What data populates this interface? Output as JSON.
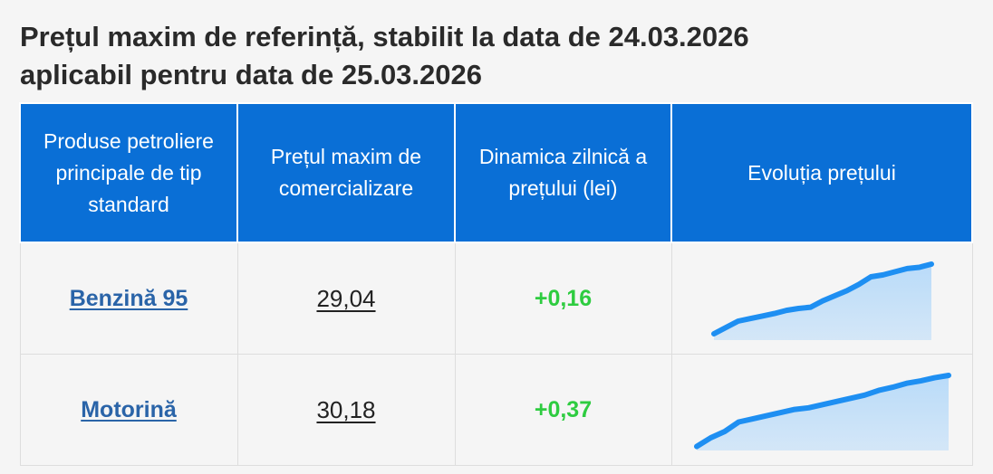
{
  "title": {
    "line1": "Prețul maxim de referință, stabilit la data de 24.03.2026",
    "line2": "aplicabil pentru data de 25.03.2026"
  },
  "table": {
    "headers": [
      "Produse petroliere principale de tip standard",
      "Prețul maxim de comercializare",
      "Dinamica zilnică a prețului (lei)",
      "Evoluția prețului"
    ],
    "rows": [
      {
        "product": "Benzină 95",
        "price": "29,04",
        "delta": "+0,16",
        "trend": [
          10,
          20,
          30,
          34,
          38,
          42,
          47,
          50,
          52,
          62,
          70,
          78,
          88,
          100,
          103,
          108,
          113,
          115,
          120
        ]
      },
      {
        "product": "Motorină",
        "price": "30,18",
        "delta": "+0,37",
        "trend": [
          5,
          16,
          24,
          36,
          40,
          44,
          48,
          52,
          54,
          58,
          62,
          66,
          70,
          76,
          80,
          85,
          88,
          92,
          95
        ]
      }
    ]
  },
  "colors": {
    "header_bg": "#0a6fd6",
    "link": "#2a64a8",
    "delta_up": "#2ecc40",
    "spark_line": "#1e8ff2",
    "spark_fill": "#b9dbf9"
  }
}
